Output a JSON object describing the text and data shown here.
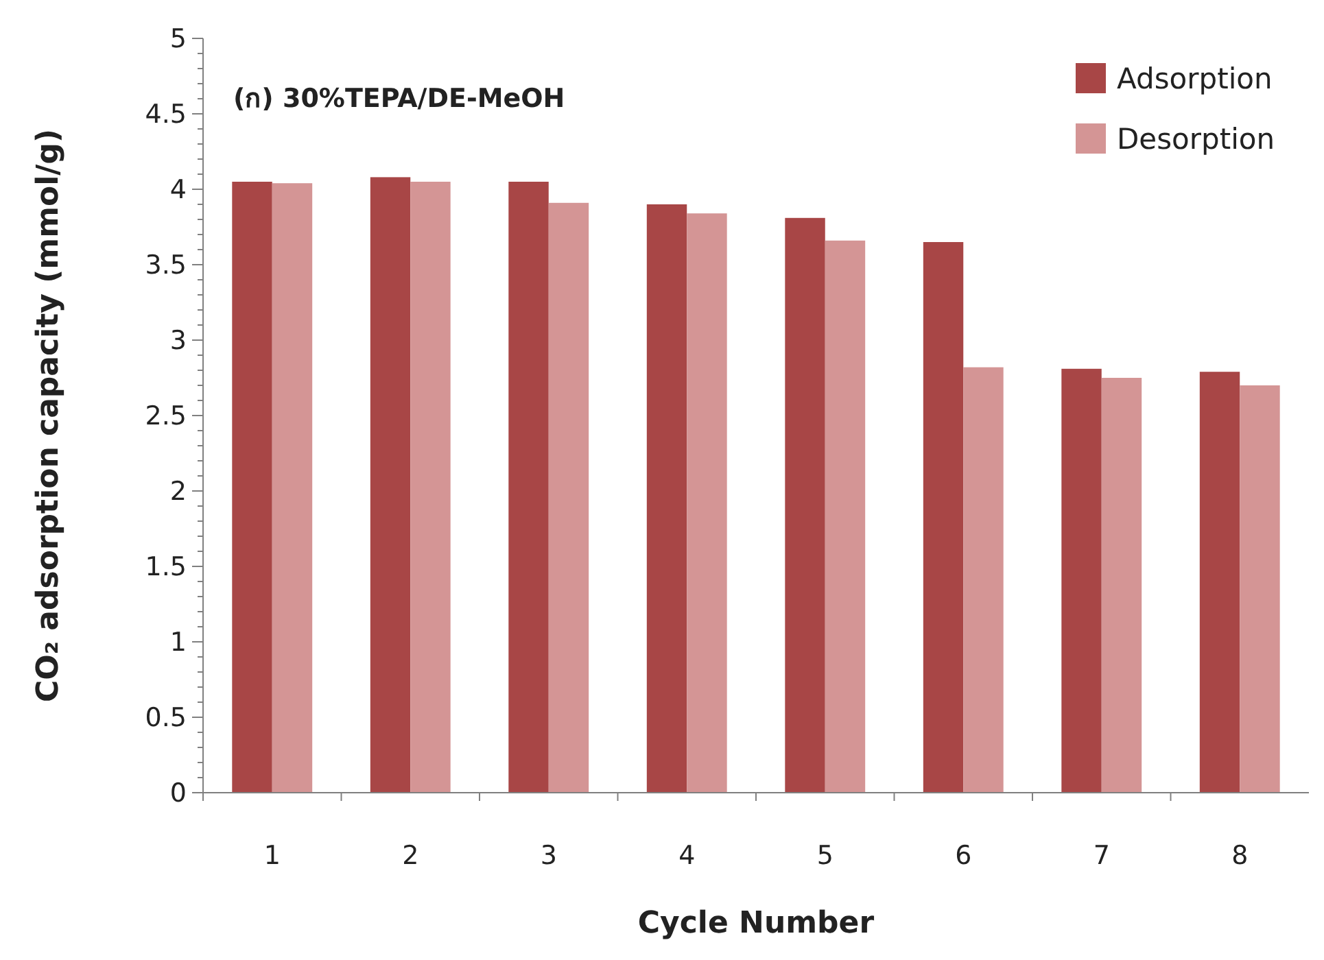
{
  "chart_data": {
    "type": "bar",
    "title": "(ก) 30%TEPA/DE-MeOH",
    "xlabel": "Cycle Number",
    "ylabel": "CO₂ adsorption capacity (mmol/g)",
    "categories": [
      "1",
      "2",
      "3",
      "4",
      "5",
      "6",
      "7",
      "8"
    ],
    "series": [
      {
        "name": "Adsorption",
        "color": "#a84646",
        "values": [
          4.05,
          4.08,
          4.05,
          3.9,
          3.81,
          3.65,
          2.81,
          2.79
        ]
      },
      {
        "name": "Desorption",
        "color": "#d49595",
        "values": [
          4.04,
          4.05,
          3.91,
          3.84,
          3.66,
          2.82,
          2.75,
          2.7
        ]
      }
    ],
    "ylim": [
      0,
      5
    ],
    "yticks": [
      0,
      {
        "value": 0.1,
        "label": null
      },
      {
        "value": 0.2,
        "label": null
      },
      {
        "value": 0.3,
        "label": null
      },
      {
        "value": 0.4,
        "label": null
      },
      0.5,
      {
        "value": 0.6,
        "label": null
      },
      {
        "value": 0.7,
        "label": null
      },
      {
        "value": 0.8,
        "label": null
      },
      {
        "value": 0.9,
        "label": null
      },
      1,
      {
        "value": 1.1,
        "label": null
      },
      {
        "value": 1.2,
        "label": null
      },
      {
        "value": 1.3,
        "label": null
      },
      {
        "value": 1.4,
        "label": null
      },
      1.5,
      {
        "value": 1.6,
        "label": null
      },
      {
        "value": 1.7,
        "label": null
      },
      {
        "value": 1.8,
        "label": null
      },
      {
        "value": 1.9,
        "label": null
      },
      2,
      {
        "value": 2.1,
        "label": null
      },
      {
        "value": 2.2,
        "label": null
      },
      {
        "value": 2.3,
        "label": null
      },
      {
        "value": 2.4,
        "label": null
      },
      2.5,
      {
        "value": 2.6,
        "label": null
      },
      {
        "value": 2.7,
        "label": null
      },
      {
        "value": 2.8,
        "label": null
      },
      {
        "value": 2.9,
        "label": null
      },
      3,
      {
        "value": 3.1,
        "label": null
      },
      {
        "value": 3.2,
        "label": null
      },
      {
        "value": 3.3,
        "label": null
      },
      {
        "value": 3.4,
        "label": null
      },
      3.5,
      {
        "value": 3.6,
        "label": null
      },
      {
        "value": 3.7,
        "label": null
      },
      {
        "value": 3.8,
        "label": null
      },
      {
        "value": 3.9,
        "label": null
      },
      4,
      {
        "value": 4.1,
        "label": null
      },
      {
        "value": 4.2,
        "label": null
      },
      {
        "value": 4.3,
        "label": null
      },
      {
        "value": 4.4,
        "label": null
      },
      4.5,
      {
        "value": 4.6,
        "label": null
      },
      {
        "value": 4.7,
        "label": null
      },
      {
        "value": 4.8,
        "label": null
      },
      {
        "value": 4.9,
        "label": null
      },
      5
    ],
    "legend": "top right"
  }
}
